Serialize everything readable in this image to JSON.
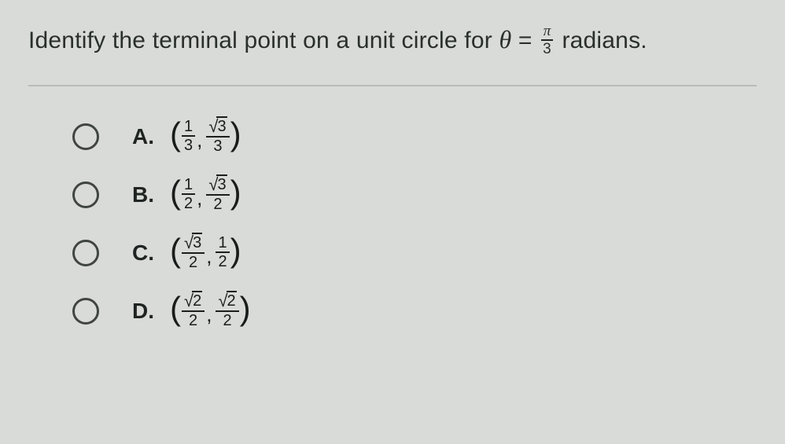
{
  "question": {
    "prefix": "Identify the terminal point on a unit circle for ",
    "theta": "θ",
    "equals": " = ",
    "frac_num": "π",
    "frac_den": "3",
    "suffix": " radians."
  },
  "options": [
    {
      "letter": "A.",
      "x": {
        "type": "frac",
        "num": "1",
        "den": "3"
      },
      "y": {
        "type": "sqrtfrac",
        "rad": "3",
        "den": "3"
      }
    },
    {
      "letter": "B.",
      "x": {
        "type": "frac",
        "num": "1",
        "den": "2"
      },
      "y": {
        "type": "sqrtfrac",
        "rad": "3",
        "den": "2"
      }
    },
    {
      "letter": "C.",
      "x": {
        "type": "sqrtfrac",
        "rad": "3",
        "den": "2"
      },
      "y": {
        "type": "frac",
        "num": "1",
        "den": "2"
      }
    },
    {
      "letter": "D.",
      "x": {
        "type": "sqrtfrac",
        "rad": "2",
        "den": "2"
      },
      "y": {
        "type": "sqrtfrac",
        "rad": "2",
        "den": "2"
      }
    }
  ]
}
